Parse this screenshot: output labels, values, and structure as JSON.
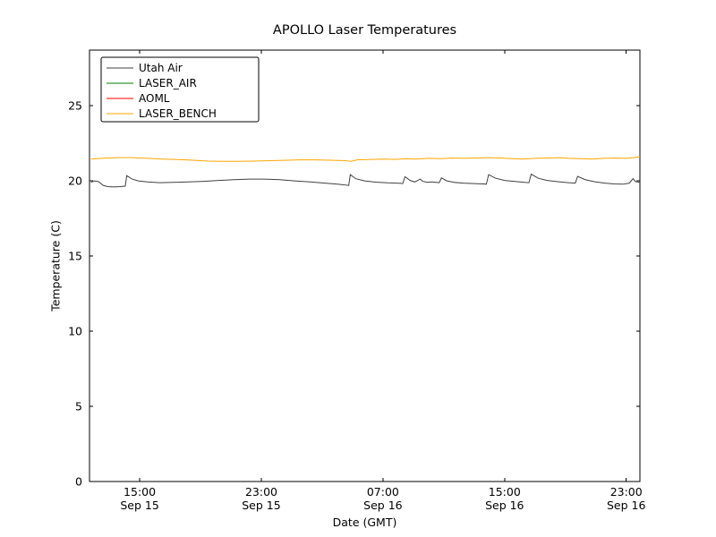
{
  "chart_data": {
    "type": "line",
    "title": "APOLLO Laser Temperatures",
    "xlabel": "Date (GMT)",
    "ylabel": "Temperature (C)",
    "ylim": [
      0,
      28.7
    ],
    "xlim_hours": [
      11.7,
      47.9
    ],
    "yticks": [
      0,
      5,
      10,
      15,
      20,
      25
    ],
    "xticks": [
      {
        "hour": 15,
        "time": "15:00",
        "date": "Sep 15"
      },
      {
        "hour": 23,
        "time": "23:00",
        "date": "Sep 15"
      },
      {
        "hour": 31,
        "time": "07:00",
        "date": "Sep 16"
      },
      {
        "hour": 39,
        "time": "15:00",
        "date": "Sep 16"
      },
      {
        "hour": 47,
        "time": "23:00",
        "date": "Sep 16"
      }
    ],
    "grid": false,
    "legend_position": "upper left",
    "series": [
      {
        "name": "Utah Air",
        "color": "#404040",
        "x": [
          11.8,
          12.0,
          12.3,
          12.6,
          12.9,
          13.3,
          13.7,
          14.05,
          14.15,
          14.5,
          14.9,
          15.5,
          16.3,
          17.2,
          18.2,
          19.2,
          20.2,
          21.2,
          22.2,
          23.2,
          24.2,
          25.2,
          26.2,
          27.2,
          28.0,
          28.6,
          28.75,
          28.85,
          29.2,
          29.8,
          30.5,
          31.3,
          32.1,
          32.3,
          32.45,
          32.8,
          33.1,
          33.45,
          33.6,
          33.9,
          34.2,
          34.7,
          34.85,
          35.2,
          35.7,
          36.3,
          37.0,
          37.6,
          37.8,
          37.95,
          38.4,
          39.0,
          39.7,
          40.3,
          40.6,
          40.75,
          41.2,
          41.8,
          42.5,
          43.2,
          43.65,
          43.8,
          44.3,
          44.9,
          45.6,
          46.2,
          46.8,
          47.2,
          47.45,
          47.6,
          47.9
        ],
        "values": [
          19.9,
          20.0,
          19.95,
          19.7,
          19.62,
          19.6,
          19.62,
          19.65,
          20.35,
          20.12,
          20.0,
          19.93,
          19.88,
          19.9,
          19.93,
          19.97,
          20.03,
          20.08,
          20.12,
          20.12,
          20.08,
          20.0,
          19.93,
          19.85,
          19.78,
          19.72,
          19.7,
          20.42,
          20.15,
          20.0,
          19.92,
          19.87,
          19.84,
          19.82,
          20.28,
          20.02,
          19.93,
          20.12,
          19.98,
          19.9,
          19.93,
          19.88,
          20.2,
          20.0,
          19.9,
          19.85,
          19.82,
          19.8,
          19.78,
          20.42,
          20.18,
          20.03,
          19.96,
          19.9,
          19.88,
          20.45,
          20.18,
          20.03,
          19.95,
          19.88,
          19.85,
          20.3,
          20.08,
          19.95,
          19.85,
          19.8,
          19.78,
          19.85,
          20.15,
          19.95,
          19.9
        ]
      },
      {
        "name": "LASER_AIR",
        "color": "#008000",
        "x": [],
        "values": []
      },
      {
        "name": "AOML",
        "color": "#ff0000",
        "x": [],
        "values": []
      },
      {
        "name": "LASER_BENCH",
        "color": "#ffa500",
        "x": [
          11.8,
          12.5,
          13.5,
          14.5,
          15.5,
          16.5,
          17.5,
          18.5,
          19.5,
          20.5,
          21.5,
          22.5,
          23.5,
          24.5,
          25.5,
          26.5,
          27.5,
          28.5,
          28.9,
          29.3,
          30.0,
          31.0,
          31.8,
          32.5,
          33.2,
          34.0,
          34.8,
          35.5,
          36.3,
          37.0,
          38.0,
          38.8,
          39.5,
          40.2,
          41.0,
          41.8,
          42.5,
          43.2,
          44.0,
          44.8,
          45.5,
          46.3,
          47.0,
          47.5,
          47.9
        ],
        "values": [
          21.45,
          21.5,
          21.55,
          21.55,
          21.5,
          21.45,
          21.42,
          21.38,
          21.32,
          21.3,
          21.3,
          21.32,
          21.35,
          21.37,
          21.4,
          21.4,
          21.38,
          21.35,
          21.3,
          21.4,
          21.42,
          21.45,
          21.43,
          21.47,
          21.45,
          21.5,
          21.48,
          21.52,
          21.5,
          21.52,
          21.55,
          21.52,
          21.48,
          21.45,
          21.5,
          21.52,
          21.55,
          21.5,
          21.48,
          21.45,
          21.5,
          21.52,
          21.5,
          21.55,
          21.6
        ]
      }
    ]
  }
}
